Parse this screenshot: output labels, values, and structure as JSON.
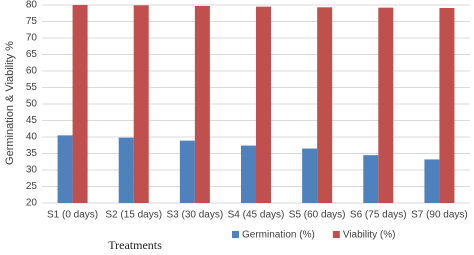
{
  "chart_data": {
    "type": "bar",
    "x_label": "Treatments",
    "y_label": "Germination & Viability %",
    "categories": [
      "S1 (0 days)",
      "S2 (15 days)",
      "S3 (30 days)",
      "S4 (45 days)",
      "S5 (60 days)",
      "S6 (75 days)",
      "S7 (90 days)"
    ],
    "series": [
      {
        "name": "Germination (%)",
        "color": "#4f81bd",
        "values": [
          40.5,
          39.8,
          38.9,
          37.4,
          36.5,
          34.5,
          33.2
        ]
      },
      {
        "name": "Viability (%)",
        "color": "#c0504d",
        "values": [
          80,
          79.9,
          79.7,
          79.5,
          79.3,
          79.2,
          79.1
        ]
      }
    ],
    "ylim": [
      20,
      80
    ],
    "yticks": [
      20,
      25,
      30,
      35,
      40,
      45,
      50,
      55,
      60,
      65,
      70,
      75,
      80
    ],
    "grid": true,
    "legend": "bottom"
  }
}
